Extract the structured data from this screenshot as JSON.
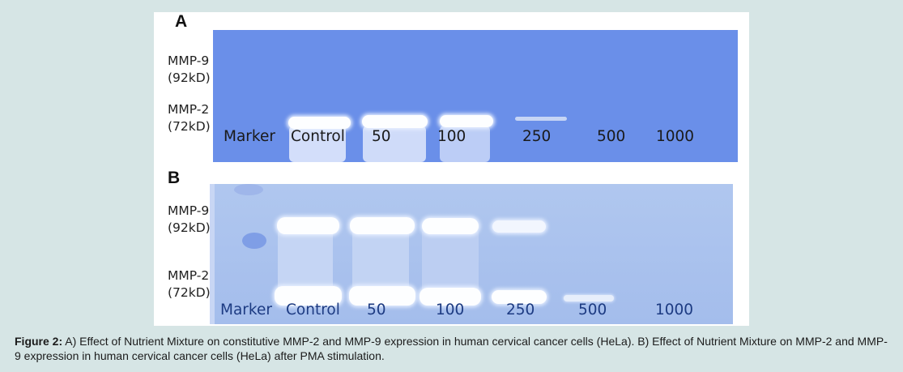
{
  "panel_a": {
    "letter": "A",
    "mmp9_name": "MMP-9",
    "mmp9_weight": "(92kD)",
    "mmp2_name": "MMP-2",
    "mmp2_weight": "(72kD)",
    "lanes": [
      "Marker",
      "Control",
      "50",
      "100",
      "250",
      "500",
      "1000"
    ]
  },
  "panel_b": {
    "letter": "B",
    "mmp9_name": "MMP-9",
    "mmp9_weight": "(92kD)",
    "mmp2_name": "MMP-2",
    "mmp2_weight": "(72kD)",
    "lanes": [
      "Marker",
      "Control",
      "50",
      "100",
      "250",
      "500",
      "1000"
    ]
  },
  "caption": {
    "prefix": "Figure 2:",
    "text": " A) Effect of Nutrient Mixture on constitutive MMP-2 and MMP-9 expression in human cervical cancer cells (HeLa). B) Effect of Nutrient Mixture on MMP-2 and MMP-9 expression in human cervical cancer cells (HeLa) after PMA stimulation."
  },
  "colors": {
    "page_background": "#d6e5e5",
    "gel_a": "#6a8fe9",
    "gel_b": "#a9c1ed",
    "band": "#fdfeff"
  }
}
